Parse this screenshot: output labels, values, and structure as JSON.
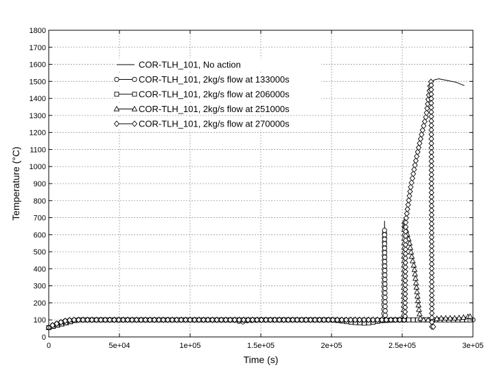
{
  "chart_data": {
    "type": "line",
    "xlabel": "Time (s)",
    "ylabel": "Temperature (°C)",
    "xlim": [
      0,
      300000
    ],
    "ylim": [
      0,
      1800
    ],
    "x_ticks": [
      0,
      50000,
      100000,
      150000,
      200000,
      250000,
      300000
    ],
    "x_tick_labels": [
      "0",
      "5e+04",
      "1e+05",
      "1.5e+05",
      "2e+05",
      "2.5e+05",
      "3e+05"
    ],
    "y_ticks": [
      0,
      100,
      200,
      300,
      400,
      500,
      600,
      700,
      800,
      900,
      1000,
      1100,
      1200,
      1300,
      1400,
      1500,
      1600,
      1700,
      1800
    ],
    "y_tick_labels": [
      "0",
      "100",
      "200",
      "300",
      "400",
      "500",
      "600",
      "700",
      "800",
      "900",
      "1000",
      "1100",
      "1200",
      "1300",
      "1400",
      "1500",
      "1600",
      "1700",
      "1800"
    ],
    "grid": true,
    "legend_position": "top-left",
    "series": [
      {
        "name": "COR-TLH_101, No action",
        "marker": "none",
        "x": [
          0,
          3000,
          8000,
          12000,
          16000,
          20000,
          30000,
          60000,
          100000,
          130000,
          140000,
          150000,
          200000,
          237000,
          237500,
          238000,
          252000,
          252500,
          256000,
          260000,
          264000,
          267000,
          268500,
          270000,
          273000,
          276000,
          282000,
          288000,
          294000
        ],
        "y": [
          55,
          70,
          85,
          95,
          100,
          100,
          100,
          100,
          100,
          100,
          100,
          100,
          100,
          100,
          680,
          100,
          100,
          680,
          880,
          1050,
          1200,
          1300,
          1400,
          1490,
          1510,
          1515,
          1505,
          1495,
          1475
        ]
      },
      {
        "name": "COR-TLH_101, 2kg/s flow at 133000s",
        "marker": "circle",
        "x": [
          0,
          3000,
          8000,
          12000,
          16000,
          20000,
          30000,
          60000,
          100000,
          133000,
          136000,
          140000,
          150000,
          200000,
          237000,
          237500,
          238000,
          240000,
          300000
        ],
        "y": [
          55,
          70,
          85,
          95,
          100,
          100,
          100,
          100,
          100,
          98,
          85,
          95,
          100,
          100,
          100,
          630,
          100,
          100,
          100
        ]
      },
      {
        "name": "COR-TLH_101, 2kg/s flow at 206000s",
        "marker": "square",
        "x": [
          0,
          20000,
          100000,
          200000,
          206000,
          215000,
          225000,
          235000,
          245000,
          255000,
          270000,
          290000,
          298000
        ],
        "y": [
          55,
          100,
          100,
          100,
          95,
          85,
          80,
          95,
          100,
          100,
          100,
          100,
          100
        ]
      },
      {
        "name": "COR-TLH_101, 2kg/s flow at 251000s",
        "marker": "triangle",
        "x": [
          0,
          20000,
          100000,
          200000,
          251000,
          251500,
          252000,
          255000,
          257000,
          258500,
          260000,
          262000,
          263000,
          264000,
          266000,
          270000,
          276000,
          282000,
          288000,
          294000,
          298000
        ],
        "y": [
          55,
          100,
          100,
          100,
          100,
          680,
          650,
          560,
          460,
          410,
          300,
          150,
          100,
          100,
          100,
          100,
          110,
          110,
          110,
          115,
          120
        ]
      },
      {
        "name": "COR-TLH_101, 2kg/s flow at 270000s",
        "marker": "diamond",
        "x": [
          0,
          3000,
          8000,
          12000,
          16000,
          20000,
          30000,
          60000,
          100000,
          150000,
          200000,
          237000,
          252000,
          252500,
          256000,
          260000,
          264000,
          267000,
          268500,
          270000,
          270500,
          271000,
          272000
        ],
        "y": [
          55,
          70,
          85,
          95,
          100,
          100,
          100,
          100,
          100,
          100,
          100,
          100,
          100,
          680,
          880,
          1050,
          1200,
          1300,
          1400,
          1490,
          1500,
          50,
          60
        ]
      }
    ]
  }
}
